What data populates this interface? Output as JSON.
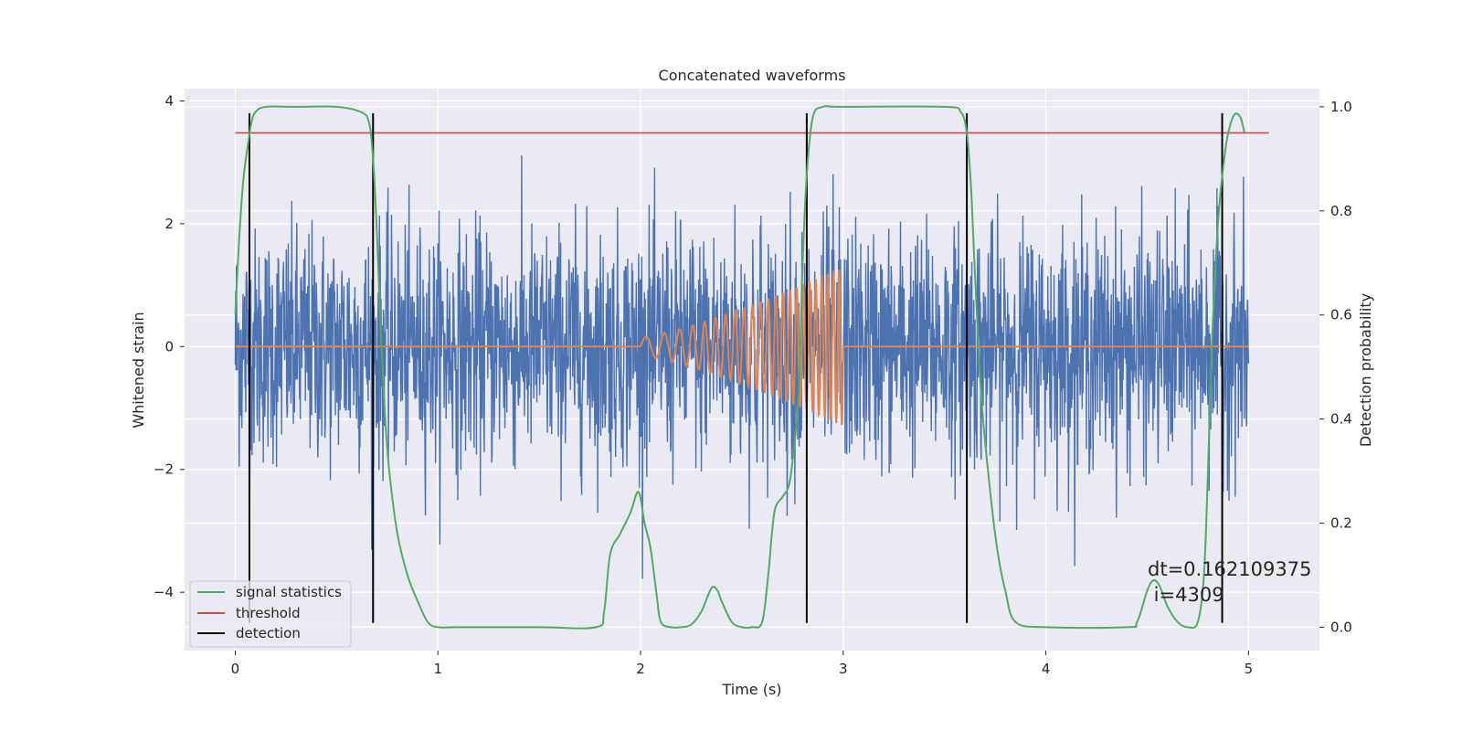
{
  "chart_data": {
    "type": "line",
    "title": "Concatenated waveforms",
    "xlabel": "Time (s)",
    "ylabel": "Whitened strain",
    "ylabel_right": "Detection probability",
    "xlim": [
      -0.25,
      5.35
    ],
    "ylim": [
      -4.95,
      4.2
    ],
    "ylim_right": [
      -0.045,
      1.035
    ],
    "x_ticks": [
      0,
      1,
      2,
      3,
      4,
      5
    ],
    "y_ticks": [
      -4,
      -2,
      0,
      2,
      4
    ],
    "y_ticks_right": [
      0.0,
      0.2,
      0.4,
      0.6,
      0.8,
      1.0
    ],
    "grid": true,
    "legend_position": "lower-left",
    "background": "#eaeaf2",
    "series": [
      {
        "name": "signal statistics",
        "axis": "right",
        "color": "#55a868",
        "x": [
          0,
          0.02,
          0.04,
          0.06,
          0.08,
          0.1,
          0.15,
          0.3,
          0.5,
          0.62,
          0.66,
          0.68,
          0.7,
          0.72,
          0.74,
          0.76,
          0.8,
          0.85,
          0.9,
          0.95,
          1.0,
          1.1,
          1.5,
          1.78,
          1.82,
          1.85,
          1.9,
          1.95,
          1.99,
          2.02,
          2.05,
          2.08,
          2.1,
          2.15,
          2.2,
          2.25,
          2.3,
          2.35,
          2.38,
          2.4,
          2.45,
          2.5,
          2.55,
          2.6,
          2.63,
          2.66,
          2.7,
          2.73,
          2.75,
          2.78,
          2.8,
          2.82,
          2.85,
          2.9,
          3.0,
          3.5,
          3.58,
          3.61,
          3.63,
          3.65,
          3.68,
          3.72,
          3.76,
          3.8,
          3.85,
          4.0,
          4.4,
          4.45,
          4.5,
          4.53,
          4.56,
          4.6,
          4.65,
          4.7,
          4.75,
          4.78,
          4.8,
          4.82,
          4.85,
          4.88,
          4.9,
          4.93,
          4.96,
          4.98
        ],
        "y": [
          0.6,
          0.75,
          0.86,
          0.92,
          0.97,
          0.99,
          1.0,
          1.0,
          1.0,
          0.99,
          0.97,
          0.9,
          0.75,
          0.55,
          0.4,
          0.3,
          0.18,
          0.1,
          0.05,
          0.01,
          0.0,
          0.0,
          0.0,
          0.0,
          0.03,
          0.14,
          0.18,
          0.22,
          0.26,
          0.2,
          0.15,
          0.06,
          0.01,
          0.0,
          0.0,
          0.005,
          0.03,
          0.075,
          0.07,
          0.05,
          0.01,
          0.0,
          0.0,
          0.01,
          0.1,
          0.22,
          0.25,
          0.27,
          0.32,
          0.45,
          0.7,
          0.87,
          0.98,
          1.0,
          1.0,
          1.0,
          0.99,
          0.95,
          0.85,
          0.68,
          0.45,
          0.28,
          0.15,
          0.07,
          0.01,
          0.0,
          0.0,
          0.01,
          0.07,
          0.09,
          0.08,
          0.04,
          0.01,
          0.0,
          0.01,
          0.1,
          0.3,
          0.55,
          0.78,
          0.9,
          0.95,
          0.985,
          0.98,
          0.95
        ]
      },
      {
        "name": "threshold",
        "axis": "right",
        "color": "#c44e52",
        "x": [
          0,
          5.1
        ],
        "y": [
          0.95,
          0.95
        ]
      },
      {
        "name": "detection",
        "axis": "left",
        "color": "#000000",
        "x_positions": [
          0.07,
          0.68,
          2.82,
          3.61,
          4.87
        ],
        "y_range": [
          -4.5,
          3.8
        ]
      },
      {
        "name": "",
        "axis": "left",
        "color": "#4c72b0",
        "style": "noise",
        "x_range": [
          0,
          5
        ],
        "amplitude": 1.0
      },
      {
        "name": "",
        "axis": "left",
        "color": "#dd8452",
        "style": "chirp",
        "x_range": [
          2,
          3
        ],
        "amplitude_start": 0.15,
        "amplitude_end": 1.3
      }
    ],
    "annotations": [
      "dt=0.162109375",
      " i=4309"
    ]
  }
}
